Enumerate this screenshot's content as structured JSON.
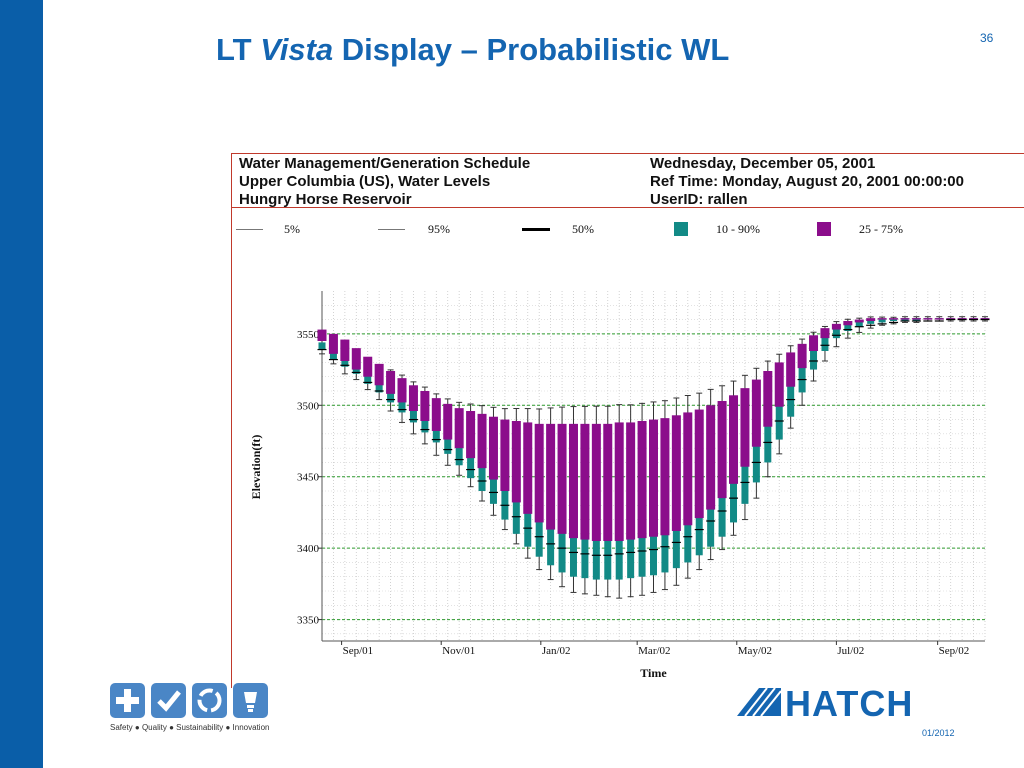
{
  "slide": {
    "title_pre": "LT ",
    "title_italic": "Vista",
    "title_post": " Display – Probabilistic WL",
    "page_number": "36",
    "date": "01/2012",
    "tagline": "Safety ● Quality ● Sustainability ● Innovation",
    "logo_text": "HATCH"
  },
  "report_header": {
    "left": [
      "Water Management/Generation Schedule",
      "Upper Columbia (US), Water Levels",
      "Hungry Horse Reservoir"
    ],
    "right": [
      "Wednesday, December 05, 2001",
      "Ref Time: Monday, August 20, 2001 00:00:00",
      "UserID: rallen"
    ]
  },
  "legend": [
    {
      "label": "5%",
      "kind": "line"
    },
    {
      "label": "95%",
      "kind": "line"
    },
    {
      "label": "50%",
      "kind": "boldline"
    },
    {
      "label": "10 - 90%",
      "kind": "box",
      "color": "#128a86"
    },
    {
      "label": "25 - 75%",
      "kind": "box",
      "color": "#8b0d8b"
    }
  ],
  "colors": {
    "band_10_90": "#128a86",
    "band_25_75": "#8b0d8b",
    "brand": "#1465b1",
    "sidebar": "#0a5ea8"
  },
  "chart_data": {
    "type": "boxplot",
    "xlabel": "Time",
    "ylabel": "Elevation(ft)",
    "ylim": [
      3335,
      3580
    ],
    "yticks": [
      3350,
      3400,
      3450,
      3500,
      3550
    ],
    "xticks": [
      "Sep/01",
      "Nov/01",
      "Jan/02",
      "Mar/02",
      "May/02",
      "Jul/02",
      "Sep/02"
    ],
    "xrange": [
      "2001-08-20",
      "2002-09-30"
    ],
    "start_date": "2001-08-20",
    "step_days": 7,
    "grid": true,
    "series": [
      [
        3545,
        3553,
        3539,
        3539,
        3544,
        3536
      ],
      [
        3536,
        3550,
        3532,
        3532,
        3540,
        3529
      ],
      [
        3531,
        3546,
        3527,
        3528,
        3537,
        3522
      ],
      [
        3525,
        3540,
        3522,
        3523,
        3533,
        3518
      ],
      [
        3520,
        3534,
        3515,
        3516,
        3529,
        3511
      ],
      [
        3514,
        3529,
        3509,
        3510,
        3525,
        3504
      ],
      [
        3508,
        3524,
        3502,
        3504,
        3521,
        3496
      ],
      [
        3502,
        3519,
        3495,
        3497,
        3517,
        3488
      ],
      [
        3496,
        3514,
        3488,
        3490,
        3512,
        3480
      ],
      [
        3489,
        3510,
        3481,
        3483,
        3508,
        3473
      ],
      [
        3482,
        3505,
        3474,
        3476,
        3503,
        3465
      ],
      [
        3476,
        3501,
        3466,
        3469,
        3499,
        3458
      ],
      [
        3470,
        3498,
        3458,
        3462,
        3496,
        3451
      ],
      [
        3463,
        3496,
        3449,
        3455,
        3494,
        3443
      ],
      [
        3456,
        3494,
        3440,
        3447,
        3492,
        3433
      ],
      [
        3448,
        3492,
        3431,
        3439,
        3490,
        3423
      ],
      [
        3440,
        3490,
        3420,
        3430,
        3488,
        3413
      ],
      [
        3432,
        3489,
        3410,
        3422,
        3487,
        3403
      ],
      [
        3424,
        3488,
        3401,
        3414,
        3486,
        3393
      ],
      [
        3418,
        3487,
        3394,
        3408,
        3485,
        3385
      ],
      [
        3413,
        3487,
        3388,
        3403,
        3485,
        3378
      ],
      [
        3410,
        3487,
        3383,
        3400,
        3485,
        3373
      ],
      [
        3407,
        3487,
        3380,
        3397,
        3485,
        3369
      ],
      [
        3406,
        3487,
        3379,
        3396,
        3485,
        3368
      ],
      [
        3405,
        3487,
        3378,
        3395,
        3485,
        3367
      ],
      [
        3405,
        3487,
        3378,
        3395,
        3485,
        3366
      ],
      [
        3405,
        3488,
        3378,
        3396,
        3486,
        3365
      ],
      [
        3406,
        3488,
        3379,
        3397,
        3486,
        3366
      ],
      [
        3407,
        3489,
        3380,
        3398,
        3487,
        3367
      ],
      [
        3408,
        3490,
        3381,
        3399,
        3488,
        3369
      ],
      [
        3409,
        3491,
        3383,
        3401,
        3489,
        3371
      ],
      [
        3412,
        3493,
        3386,
        3404,
        3491,
        3374
      ],
      [
        3416,
        3495,
        3390,
        3408,
        3493,
        3379
      ],
      [
        3421,
        3497,
        3395,
        3413,
        3495,
        3385
      ],
      [
        3427,
        3500,
        3401,
        3419,
        3498,
        3392
      ],
      [
        3435,
        3503,
        3408,
        3426,
        3501,
        3399
      ],
      [
        3445,
        3507,
        3418,
        3435,
        3505,
        3409
      ],
      [
        3457,
        3512,
        3431,
        3446,
        3510,
        3420
      ],
      [
        3471,
        3518,
        3446,
        3460,
        3516,
        3435
      ],
      [
        3485,
        3524,
        3460,
        3474,
        3522,
        3450
      ],
      [
        3499,
        3530,
        3476,
        3489,
        3528,
        3466
      ],
      [
        3513,
        3537,
        3492,
        3504,
        3535,
        3484
      ],
      [
        3526,
        3543,
        3509,
        3518,
        3541,
        3500
      ],
      [
        3538,
        3549,
        3525,
        3531,
        3547,
        3517
      ],
      [
        3547,
        3554,
        3538,
        3542,
        3552,
        3531
      ],
      [
        3553,
        3557,
        3547,
        3549,
        3556,
        3541
      ],
      [
        3556,
        3559,
        3552,
        3553,
        3558,
        3547
      ],
      [
        3558,
        3560,
        3555,
        3555,
        3559,
        3551
      ],
      [
        3559,
        3561,
        3557,
        3556,
        3560,
        3554
      ],
      [
        3560,
        3561,
        3558,
        3557,
        3560,
        3556
      ],
      [
        3560,
        3561,
        3559,
        3558,
        3560,
        3557
      ],
      [
        3560,
        3561,
        3559,
        3559,
        3561,
        3558
      ],
      [
        3560,
        3561,
        3559,
        3559,
        3561,
        3558
      ],
      [
        3560,
        3561,
        3560,
        3559,
        3561,
        3559
      ],
      [
        3560,
        3561,
        3560,
        3559,
        3561,
        3559
      ],
      [
        3560,
        3561,
        3560,
        3560,
        3561,
        3559
      ],
      [
        3560,
        3561,
        3560,
        3560,
        3561,
        3559
      ],
      [
        3560,
        3561,
        3560,
        3560,
        3561,
        3559
      ],
      [
        3560,
        3561,
        3560,
        3560,
        3561,
        3559
      ]
    ],
    "series_fields": [
      "q25",
      "q75",
      "q10",
      "median",
      "q90",
      "q05"
    ]
  }
}
